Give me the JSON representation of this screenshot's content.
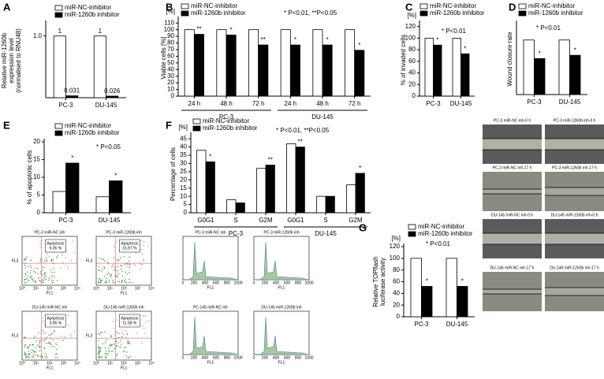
{
  "chart_data": [
    {
      "type": "bar",
      "title": "A",
      "y_label": [
        "Relative miR-1260b",
        "expression level",
        "(normalised to RNU48)"
      ],
      "categories": [
        "PC-3",
        "DU-145"
      ],
      "series": [
        {
          "name": "miR-NC-inhibitor",
          "color": "#ffffff",
          "values": [
            1,
            1
          ]
        },
        {
          "name": "miR-1260b inhibitor",
          "color": "#000000",
          "values": [
            0.031,
            0.026
          ]
        }
      ],
      "show_values": true,
      "ylim": [
        0,
        1.2
      ],
      "yticks": [
        {
          "value": 1,
          "label": "1.0"
        }
      ]
    },
    {
      "type": "bar",
      "title": "B",
      "y_label": [
        "Viable cells [%]"
      ],
      "unit_label": "[%]",
      "categories": [
        "24 h",
        "48 h",
        "72 h",
        "24 h",
        "48 h",
        "72 h"
      ],
      "group_labels": [
        "PC-3",
        "DU-145"
      ],
      "series": [
        {
          "name": "miR-NC-inhibitor",
          "color": "#ffffff",
          "values": [
            100,
            100,
            100,
            100,
            100,
            100
          ]
        },
        {
          "name": "miR-1260b inhibitor",
          "color": "#000000",
          "values": [
            93,
            92,
            77,
            77,
            77,
            69
          ]
        }
      ],
      "significance": [
        "**",
        "*",
        "**",
        "*",
        "*",
        "*"
      ],
      "annotation": "* P<0.01, **P<0.05",
      "ylim": [
        0,
        115
      ],
      "yticks": [
        0,
        10,
        20,
        30,
        40,
        50,
        60,
        70,
        80,
        90,
        100,
        110
      ]
    },
    {
      "type": "bar",
      "title": "C",
      "y_label": [
        "% of invaded cells"
      ],
      "unit_label": "[%]",
      "categories": [
        "PC-3",
        "DU-145"
      ],
      "series": [
        {
          "name": "miR-NC-inhibitor",
          "color": "#ffffff",
          "values": [
            100,
            100
          ]
        },
        {
          "name": "miR-1260b inhibitor",
          "color": "#000000",
          "values": [
            88,
            73
          ]
        }
      ],
      "significance": [
        "*",
        "*"
      ],
      "annotation": "* P<0.01",
      "ylim": [
        0,
        125
      ],
      "yticks": [
        0,
        20,
        40,
        60,
        80,
        100,
        120
      ]
    },
    {
      "type": "bar",
      "title": "D",
      "y_label": [
        "Wound closure rate"
      ],
      "categories": [
        "PC-3",
        "DU-145"
      ],
      "series": [
        {
          "name": "miR-NC-inhibitor",
          "color": "#ffffff",
          "values": [
            100,
            100
          ]
        },
        {
          "name": "miR-1260b inhibitor",
          "color": "#000000",
          "values": [
            66,
            72
          ]
        }
      ],
      "significance": [
        "*",
        "*"
      ],
      "annotation": "* P<0.01",
      "ylim": [
        0,
        130
      ],
      "yticks": []
    },
    {
      "type": "bar",
      "title": "E",
      "y_label": [
        "% of apoptotic cells"
      ],
      "categories": [
        "PC-3",
        "DU-145"
      ],
      "series": [
        {
          "name": "miR-NC-inhibitor",
          "color": "#ffffff",
          "values": [
            6,
            4.5
          ]
        },
        {
          "name": "miR-1260b inhibitor",
          "color": "#000000",
          "values": [
            14,
            9
          ]
        }
      ],
      "significance": [
        "*",
        "*"
      ],
      "annotation": "* P<0.05",
      "ylim": [
        0,
        20
      ],
      "yticks": [
        0,
        5,
        10,
        15,
        20
      ]
    },
    {
      "type": "bar",
      "title": "F",
      "y_label": [
        "Percentage of cells"
      ],
      "unit_label": "[%]",
      "categories": [
        "G0G1",
        "S",
        "G2M",
        "G0G1",
        "S",
        "G2M"
      ],
      "group_labels": [
        "PC-3",
        "DU-145"
      ],
      "series": [
        {
          "name": "miR-NC-inhibitor",
          "color": "#ffffff",
          "values": [
            38,
            8,
            27,
            42,
            10,
            17
          ]
        },
        {
          "name": "miR-1260b inhibitor",
          "color": "#000000",
          "values": [
            31,
            6,
            29,
            40,
            10,
            24
          ]
        }
      ],
      "significance": [
        "*",
        null,
        "**",
        "**",
        null,
        "*"
      ],
      "annotation": "* P<0.01, **P<0.05",
      "ylim": [
        0,
        47
      ],
      "yticks": [
        0,
        5,
        10,
        15,
        20,
        25,
        30,
        35,
        40,
        45
      ]
    },
    {
      "type": "bar",
      "title": "G",
      "y_label": [
        "Relative TOPflash",
        "luciferase activity"
      ],
      "unit_label": "[%]",
      "categories": [
        "PC-3",
        "DU-145"
      ],
      "series": [
        {
          "name": "miR-NC-inhibitor",
          "color": "#ffffff",
          "values": [
            100,
            100
          ]
        },
        {
          "name": "miR-1260b inhibitor",
          "color": "#000000",
          "values": [
            52,
            52
          ]
        }
      ],
      "significance": [
        "*",
        "*"
      ],
      "annotation": "* P<0.01",
      "ylim": [
        0,
        120
      ],
      "yticks": [
        0,
        20,
        40,
        60,
        80,
        100,
        120
      ]
    }
  ],
  "apoptosis": {
    "x_label": "FL1",
    "y_label": "FL3",
    "gate_title": "Apoptosis",
    "ticks": [
      "10⁰",
      "10¹",
      "10²",
      "10³",
      "10⁴"
    ],
    "plots": [
      {
        "label": "PC-3 miR-NC inh",
        "gate_value": "6.05 %"
      },
      {
        "label": "PC-3 miR-1260b inh",
        "gate_value": "15.97 %"
      },
      {
        "label": "DU-145 miR-NC inh",
        "gate_value": "3.95 %"
      },
      {
        "label": "DU-145 miR-1260b inh",
        "gate_value": "11.58 %"
      }
    ]
  },
  "cell_cycle": {
    "x_label": "FL1",
    "ticks": [
      0,
      200,
      400,
      600,
      800,
      1000
    ],
    "plots": [
      "PC-3 miR-NC inh",
      "PC-3 miR-1260b inh",
      "PC-145 miR-NC inh",
      "DU-145 miR-1260b inh"
    ]
  },
  "wound": {
    "labels": [
      "PC-3 miR-NC inh-0 h",
      "PC-3 miR-1260b inh-0 h",
      "PC-3 miR-NC inh-17 h",
      "PC-3 miR-1260b inh-17 h",
      "DU-145 miR-NC inh-0 h",
      "DU-145 miR-1260b inh-0 h",
      "DU-145 miR-NC inh-17 h",
      "DU-145 miR-1260b inh-17 h"
    ]
  }
}
